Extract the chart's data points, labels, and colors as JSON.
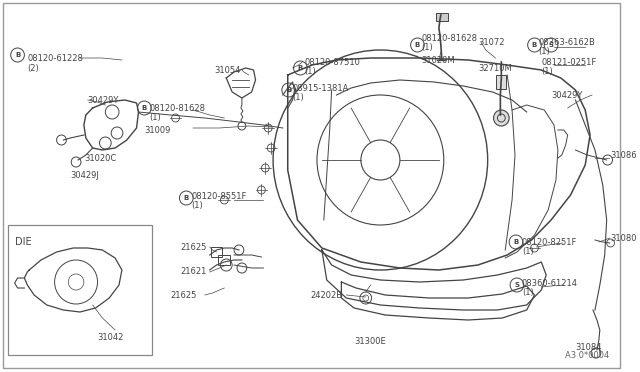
{
  "bg_color": "#ffffff",
  "line_color": "#444444",
  "diagram_code": "A3 0*0004",
  "fig_w": 6.4,
  "fig_h": 3.72,
  "xlim": [
    0,
    640
  ],
  "ylim": [
    0,
    372
  ]
}
